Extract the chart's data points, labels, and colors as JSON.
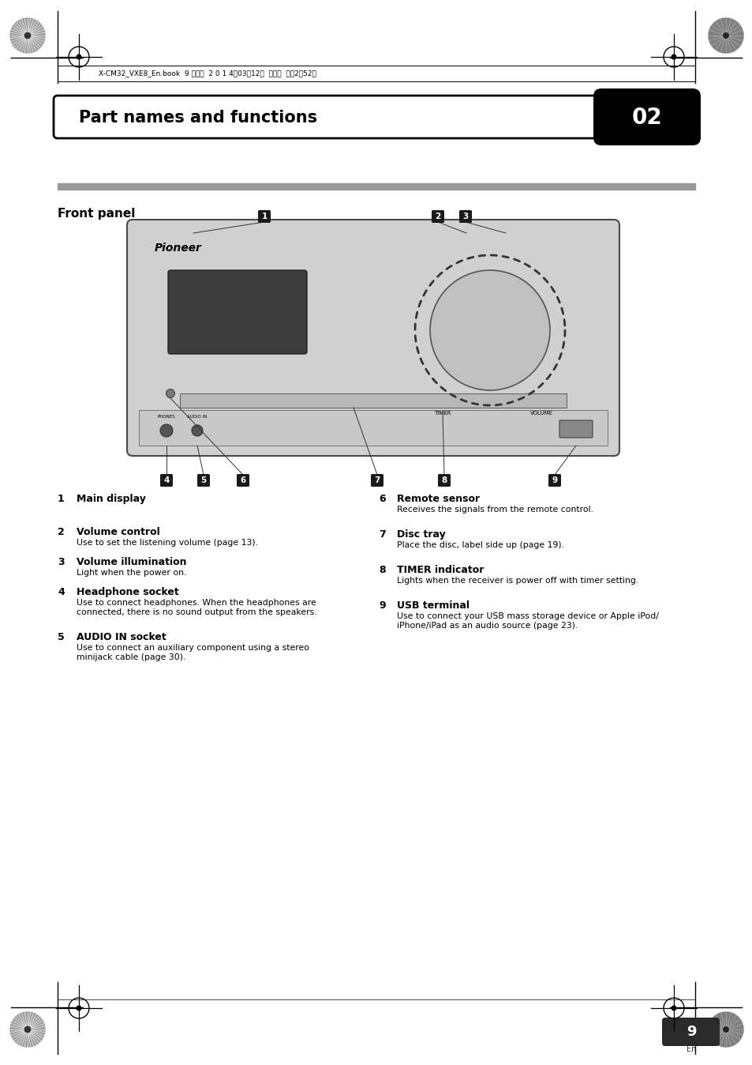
{
  "page_bg": "#ffffff",
  "header_text": "X-CM32_VXE8_En.book  9 ページ  2 0 1 4年03月12日  水曜日  午後2時52分",
  "section_title": "Part names and functions",
  "section_number": "02",
  "subsection_title": "Front panel",
  "items_left": [
    {
      "num": "1",
      "title": "Main display",
      "desc": ""
    },
    {
      "num": "2",
      "title": "Volume control",
      "desc": "Use to set the listening volume (page 13)."
    },
    {
      "num": "3",
      "title": "Volume illumination",
      "desc": "Light when the power on."
    },
    {
      "num": "4",
      "title": "Headphone socket",
      "desc": "Use to connect headphones. When the headphones are\nconnected, there is no sound output from the speakers."
    },
    {
      "num": "5",
      "title": "AUDIO IN socket",
      "desc": "Use to connect an auxiliary component using a stereo\nminijack cable (page 30)."
    }
  ],
  "items_right": [
    {
      "num": "6",
      "title": "Remote sensor",
      "desc": "Receives the signals from the remote control."
    },
    {
      "num": "7",
      "title": "Disc tray",
      "desc": "Place the disc, label side up (page 19)."
    },
    {
      "num": "8",
      "title": "TIMER indicator",
      "desc": "Lights when the receiver is power off with timer setting."
    },
    {
      "num": "9",
      "title": "USB terminal",
      "desc": "Use to connect your USB mass storage device or Apple iPod/\niPhone/iPad as an audio source (page 23)."
    }
  ],
  "page_number": "9",
  "page_lang": "En",
  "device_color": "#d0d0d0",
  "display_color": "#3c3c3c",
  "knob_color": "#c0c0c0"
}
